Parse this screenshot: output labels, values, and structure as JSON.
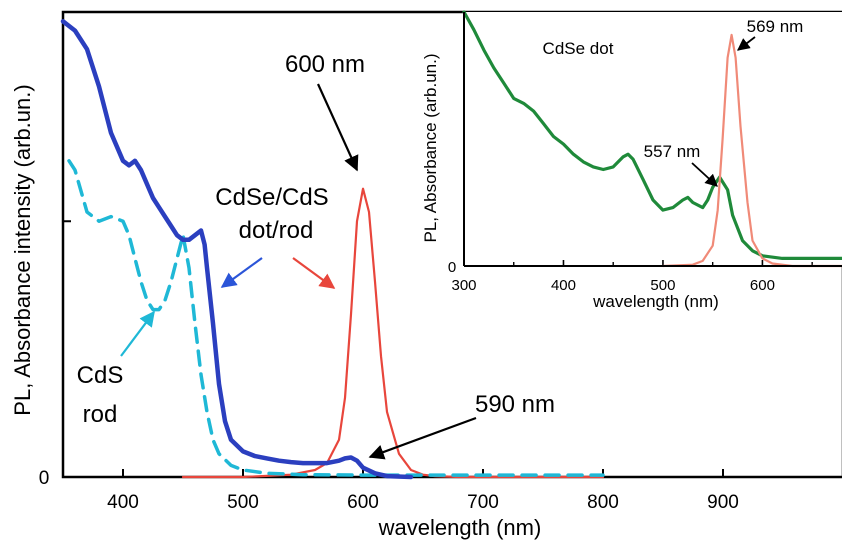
{
  "chart_data": [
    {
      "type": "line",
      "xlabel": "wavelength (nm)",
      "ylabel": "PL, Absorbance intensity (arb.un.)",
      "xlim": [
        350,
        1000
      ],
      "ylim": [
        0,
        1.0
      ],
      "x_ticks": [
        400,
        500,
        600,
        700,
        800,
        900
      ],
      "y_ticks": [
        0
      ],
      "colors": {
        "dot_rod_absorbance": "#2b3fbf",
        "cds_rod_absorbance": "#1fb8d6",
        "pl": "#e8463c",
        "arrow_black": "#000000",
        "arrow_blue": "#2b55d8",
        "arrow_red": "#e8463c",
        "arrow_cyan": "#1fb8d6"
      },
      "series": [
        {
          "style": "solid",
          "x": [
            350,
            360,
            370,
            380,
            390,
            400,
            405,
            410,
            415,
            420,
            425,
            430,
            435,
            440,
            445,
            450,
            455,
            460,
            465,
            468,
            470,
            475,
            480,
            485,
            490,
            500,
            510,
            520,
            530,
            540,
            550,
            560,
            570,
            580,
            585,
            590,
            595,
            600,
            610,
            620,
            640
          ],
          "y": [
            0.98,
            0.96,
            0.92,
            0.84,
            0.74,
            0.68,
            0.67,
            0.68,
            0.66,
            0.63,
            0.6,
            0.58,
            0.56,
            0.54,
            0.52,
            0.51,
            0.51,
            0.52,
            0.53,
            0.5,
            0.45,
            0.33,
            0.2,
            0.12,
            0.08,
            0.055,
            0.045,
            0.04,
            0.035,
            0.032,
            0.03,
            0.03,
            0.03,
            0.035,
            0.04,
            0.042,
            0.035,
            0.02,
            0.008,
            0.002,
            0.0
          ]
        },
        {
          "style": "dashed",
          "x": [
            355,
            360,
            370,
            380,
            390,
            400,
            405,
            410,
            415,
            420,
            425,
            430,
            435,
            440,
            445,
            450,
            455,
            460,
            465,
            470,
            475,
            480,
            490,
            500,
            520,
            550,
            600,
            650,
            700,
            750,
            800
          ],
          "y": [
            0.68,
            0.66,
            0.57,
            0.55,
            0.56,
            0.55,
            0.52,
            0.47,
            0.42,
            0.38,
            0.36,
            0.36,
            0.38,
            0.42,
            0.47,
            0.52,
            0.45,
            0.33,
            0.22,
            0.14,
            0.08,
            0.05,
            0.025,
            0.015,
            0.008,
            0.005,
            0.004,
            0.004,
            0.004,
            0.004,
            0.004
          ]
        },
        {
          "style": "solid",
          "x": [
            450,
            500,
            540,
            560,
            570,
            580,
            585,
            590,
            595,
            600,
            605,
            610,
            615,
            620,
            630,
            640,
            650,
            660,
            680,
            700,
            750,
            800
          ],
          "y": [
            0.0,
            0.0,
            0.005,
            0.015,
            0.03,
            0.08,
            0.17,
            0.35,
            0.55,
            0.62,
            0.57,
            0.42,
            0.26,
            0.14,
            0.05,
            0.015,
            0.005,
            0.002,
            0.0,
            0.0,
            0.0,
            0.0
          ]
        }
      ],
      "annotations": {
        "pl_peak": "600 nm",
        "dot_rod": "CdSe/CdS dot/rod",
        "dot_rod_line1": "CdSe/CdS",
        "dot_rod_line2": "dot/rod",
        "cds_rod_line1": "CdS",
        "cds_rod_line2": "rod",
        "abs_feature": "590 nm"
      }
    },
    {
      "type": "line",
      "title": "CdSe dot",
      "xlabel": "wavelength (nm)",
      "ylabel": "PL, Absorbance (arb.un.)",
      "xlim": [
        300,
        680
      ],
      "ylim": [
        0,
        1.0
      ],
      "x_ticks": [
        300,
        400,
        500,
        600
      ],
      "y_ticks": [
        0
      ],
      "colors": {
        "absorbance": "#1f8a3a",
        "pl": "#f08a78"
      },
      "series": [
        {
          "x": [
            300,
            310,
            320,
            330,
            340,
            350,
            360,
            370,
            380,
            390,
            400,
            410,
            420,
            430,
            440,
            450,
            460,
            465,
            470,
            480,
            490,
            500,
            510,
            520,
            525,
            530,
            540,
            545,
            550,
            557,
            565,
            570,
            580,
            590,
            600,
            620,
            650,
            680
          ],
          "y": [
            1.0,
            0.93,
            0.85,
            0.78,
            0.72,
            0.66,
            0.64,
            0.61,
            0.56,
            0.51,
            0.48,
            0.44,
            0.41,
            0.39,
            0.38,
            0.39,
            0.43,
            0.44,
            0.42,
            0.34,
            0.26,
            0.22,
            0.23,
            0.26,
            0.27,
            0.25,
            0.23,
            0.26,
            0.31,
            0.35,
            0.3,
            0.2,
            0.1,
            0.06,
            0.04,
            0.03,
            0.03,
            0.03
          ]
        },
        {
          "x": [
            500,
            530,
            540,
            550,
            555,
            560,
            565,
            569,
            573,
            578,
            585,
            590,
            600,
            610,
            630,
            680
          ],
          "y": [
            0.0,
            0.005,
            0.02,
            0.08,
            0.22,
            0.5,
            0.82,
            0.91,
            0.82,
            0.55,
            0.25,
            0.1,
            0.03,
            0.01,
            0.0,
            0.0
          ]
        }
      ],
      "annotations": {
        "abs_peak": "557 nm",
        "pl_peak": "569 nm"
      }
    }
  ]
}
